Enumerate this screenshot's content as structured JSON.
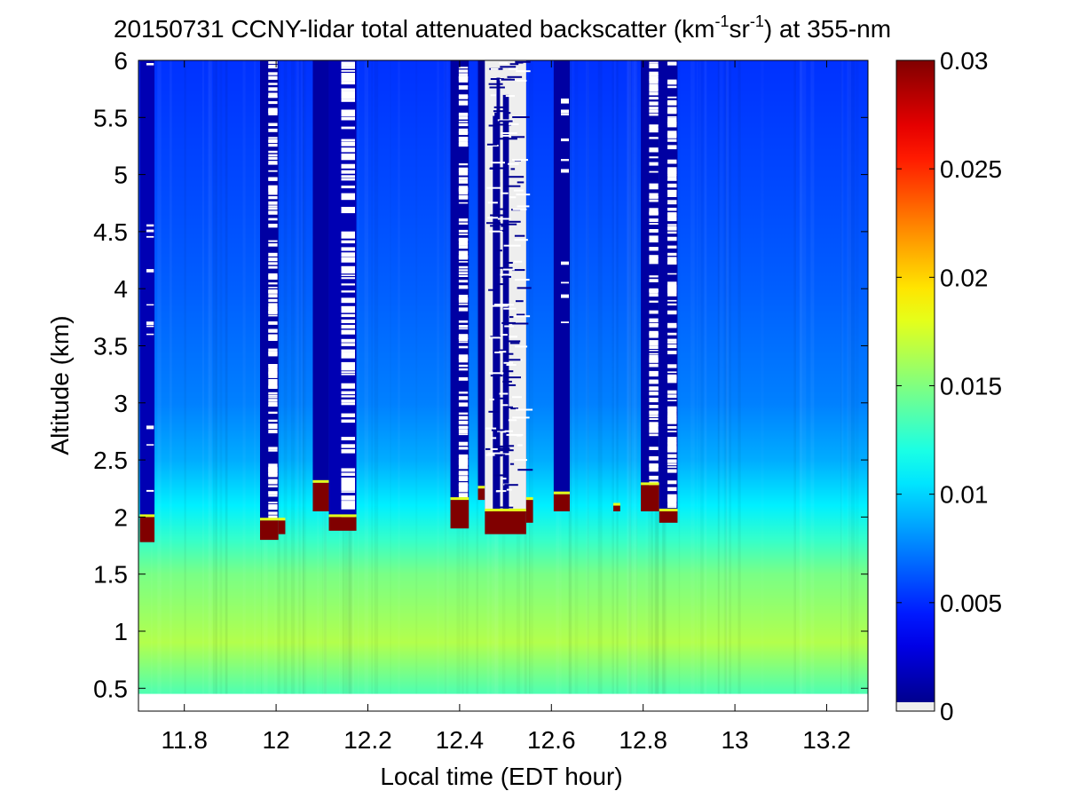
{
  "chart_data": {
    "type": "heatmap",
    "title": {
      "prefix": "20150731 CCNY-lidar total attenuated backscatter (km",
      "sup1": "-1",
      "mid": "sr",
      "sup2": "-1",
      "suffix": ") at 355-nm"
    },
    "xlabel": "Local time (EDT hour)",
    "ylabel": "Altitude (km)",
    "xlim": [
      11.7,
      13.29
    ],
    "ylim": [
      0.3,
      6.0
    ],
    "x_ticks": [
      11.8,
      12,
      12.2,
      12.4,
      12.6,
      12.8,
      13,
      13.2
    ],
    "x_tick_labels": [
      "11.8",
      "12",
      "12.2",
      "12.4",
      "12.6",
      "12.8",
      "13",
      "13.2"
    ],
    "y_ticks": [
      0.5,
      1,
      1.5,
      2,
      2.5,
      3,
      3.5,
      4,
      4.5,
      5,
      5.5,
      6
    ],
    "y_tick_labels": [
      "0.5",
      "1",
      "1.5",
      "2",
      "2.5",
      "3",
      "3.5",
      "4",
      "4.5",
      "5",
      "5.5",
      "6"
    ],
    "data_bottom_altitude": 0.45,
    "colorbar": {
      "colormap": "jet",
      "range": [
        0,
        0.03
      ],
      "ticks": [
        0,
        0.005,
        0.01,
        0.015,
        0.02,
        0.025,
        0.03
      ],
      "tick_labels": [
        "0",
        "0.005",
        "0.01",
        "0.015",
        "0.02",
        "0.025",
        "0.03"
      ]
    },
    "background_profile": [
      {
        "alt": 0.45,
        "value": 0.0135
      },
      {
        "alt": 0.9,
        "value": 0.0165
      },
      {
        "alt": 1.5,
        "value": 0.0148
      },
      {
        "alt": 1.8,
        "value": 0.0128
      },
      {
        "alt": 2.1,
        "value": 0.0108
      },
      {
        "alt": 2.5,
        "value": 0.0088
      },
      {
        "alt": 3.0,
        "value": 0.0075
      },
      {
        "alt": 4.0,
        "value": 0.0065
      },
      {
        "alt": 5.0,
        "value": 0.0058
      },
      {
        "alt": 6.0,
        "value": 0.0052
      }
    ],
    "cloud_columns": [
      {
        "x0": 11.703,
        "x1": 11.735,
        "cloud_base": 1.78,
        "cloud_top": 2.0,
        "value": 0.03,
        "above_value": 0.0015,
        "gaps": "sparse"
      },
      {
        "x0": 11.965,
        "x1": 12.005,
        "cloud_base": 1.8,
        "cloud_top": 1.97,
        "value": 0.03,
        "above_value": 0.001,
        "gaps": "dense"
      },
      {
        "x0": 12.005,
        "x1": 12.02,
        "cloud_base": 1.85,
        "cloud_top": 1.97,
        "value": 0.03,
        "above_value": null,
        "gaps": "none"
      },
      {
        "x0": 12.08,
        "x1": 12.115,
        "cloud_base": 2.05,
        "cloud_top": 2.3,
        "value": 0.03,
        "above_value": 0.001,
        "gaps": "none"
      },
      {
        "x0": 12.115,
        "x1": 12.175,
        "cloud_base": 1.88,
        "cloud_top": 2.0,
        "value": 0.03,
        "above_value": 0.0015,
        "gaps": "dense"
      },
      {
        "x0": 12.38,
        "x1": 12.42,
        "cloud_base": 1.9,
        "cloud_top": 2.15,
        "value": 0.03,
        "above_value": 0.001,
        "gaps": "dense"
      },
      {
        "x0": 12.44,
        "x1": 12.455,
        "cloud_base": 2.15,
        "cloud_top": 2.25,
        "value": 0.03,
        "above_value": 0.0005,
        "gaps": "none"
      },
      {
        "x0": 12.455,
        "x1": 12.545,
        "cloud_base": 1.85,
        "cloud_top": 2.05,
        "value": 0.03,
        "above_value": 0.0005,
        "gaps": "full"
      },
      {
        "x0": 12.545,
        "x1": 12.56,
        "cloud_base": 1.95,
        "cloud_top": 2.15,
        "value": 0.03,
        "above_value": null,
        "gaps": "none"
      },
      {
        "x0": 12.605,
        "x1": 12.64,
        "cloud_base": 2.05,
        "cloud_top": 2.2,
        "value": 0.03,
        "above_value": 0.001,
        "gaps": "sparse"
      },
      {
        "x0": 12.735,
        "x1": 12.75,
        "cloud_base": 2.05,
        "cloud_top": 2.1,
        "value": 0.03,
        "above_value": null,
        "gaps": "none"
      },
      {
        "x0": 12.795,
        "x1": 12.835,
        "cloud_base": 2.05,
        "cloud_top": 2.28,
        "value": 0.03,
        "above_value": 0.001,
        "gaps": "dense"
      },
      {
        "x0": 12.835,
        "x1": 12.875,
        "cloud_base": 1.95,
        "cloud_top": 2.05,
        "value": 0.03,
        "above_value": 0.001,
        "gaps": "dense"
      }
    ]
  }
}
